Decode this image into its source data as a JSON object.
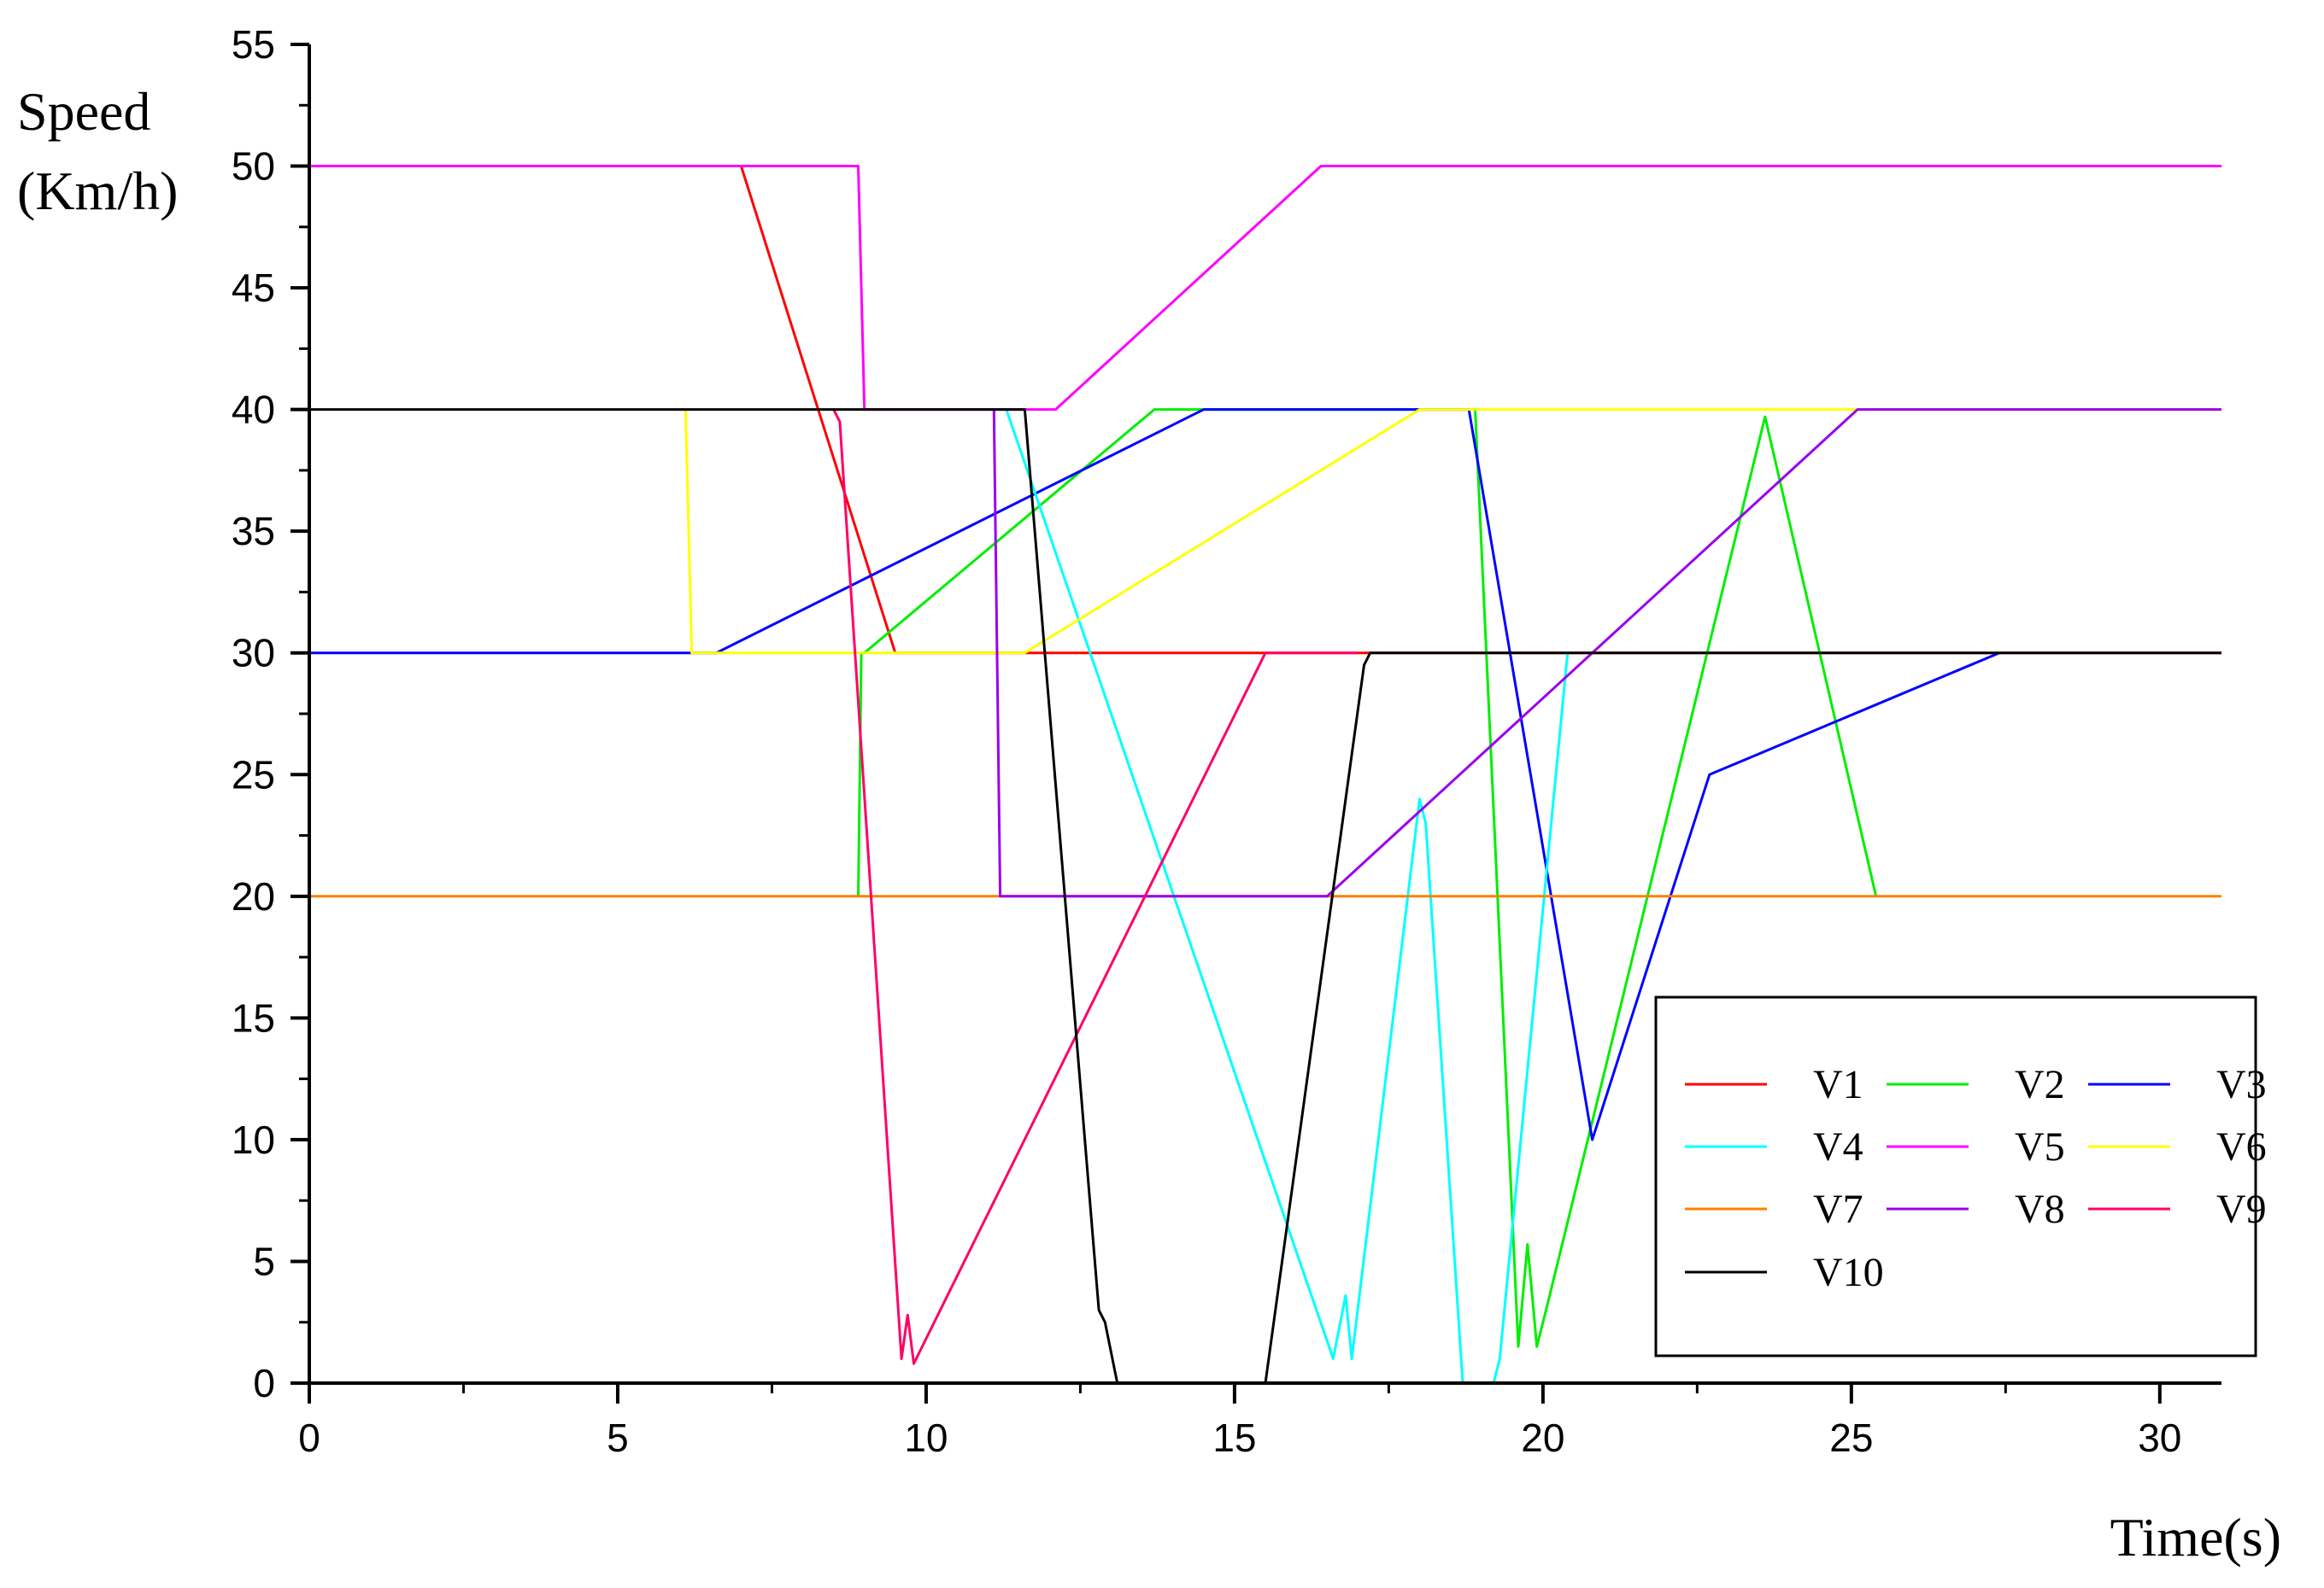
{
  "chart_data": {
    "type": "line",
    "title": "",
    "xlabel": "Time(s)",
    "ylabel_line1": "Speed",
    "ylabel_line2": "(Km/h)",
    "xlim": [
      0,
      31
    ],
    "ylim": [
      0,
      55
    ],
    "xticks": [
      0,
      5,
      10,
      15,
      20,
      25,
      30
    ],
    "yticks": [
      0,
      5,
      10,
      15,
      20,
      25,
      30,
      35,
      40,
      45,
      50,
      55
    ],
    "xtick_labels": [
      "0",
      "5",
      "10",
      "15",
      "20",
      "25",
      "30"
    ],
    "ytick_labels": [
      "0",
      "5",
      "10",
      "15",
      "20",
      "25",
      "30",
      "35",
      "40",
      "45",
      "50",
      "55"
    ],
    "grid": false,
    "legend_position": "lower-right",
    "series": [
      {
        "name": "V1",
        "color": "#ff0000",
        "x": [
          7.0,
          9.5,
          31
        ],
        "y": [
          50,
          30,
          30
        ]
      },
      {
        "name": "V2",
        "color": "#00ee00",
        "x": [
          8.9,
          8.95,
          9.0,
          13.7,
          18.9,
          19.6,
          19.75,
          19.9,
          20.05,
          23.6,
          25.4
        ],
        "y": [
          20,
          30,
          30,
          40,
          40,
          1.5,
          5.7,
          1.5,
          3,
          39.7,
          20
        ]
      },
      {
        "name": "V3",
        "color": "#0000ff",
        "x": [
          0,
          6.6,
          14.5,
          18.8,
          20.8,
          22.7,
          27.4
        ],
        "y": [
          30,
          30,
          40,
          40,
          10,
          25,
          30
        ]
      },
      {
        "name": "V4",
        "color": "#00ffff",
        "x": [
          11.3,
          16.6,
          16.8,
          16.9,
          18.0,
          18.1,
          18.7,
          19.2,
          19.3,
          20.4
        ],
        "y": [
          40,
          1,
          3.6,
          1,
          24,
          23,
          0,
          0,
          1,
          30
        ]
      },
      {
        "name": "V5",
        "color": "#ff00ff",
        "x": [
          0,
          8.9,
          9.0,
          12.1,
          16.4,
          31
        ],
        "y": [
          50,
          50,
          40,
          40,
          50,
          50
        ]
      },
      {
        "name": "V6",
        "color": "#ffff00",
        "x": [
          6.1,
          6.2,
          11.6,
          18.0,
          31
        ],
        "y": [
          40,
          30,
          30,
          40,
          40
        ]
      },
      {
        "name": "V7",
        "color": "#ff8000",
        "x": [
          0,
          31
        ],
        "y": [
          20,
          20
        ]
      },
      {
        "name": "V8",
        "color": "#9900ee",
        "x": [
          11.1,
          11.2,
          16.5,
          25.1,
          31
        ],
        "y": [
          40,
          20,
          20,
          40,
          40
        ]
      },
      {
        "name": "V9",
        "color": "#ff0066",
        "x": [
          8.5,
          8.6,
          9.6,
          9.7,
          9.8,
          15.5,
          17.0
        ],
        "y": [
          40,
          39.5,
          1,
          2.8,
          0.8,
          30,
          30
        ]
      },
      {
        "name": "V10",
        "color": "#000000",
        "x": [
          0,
          11.6,
          12.8,
          12.9,
          13.1,
          15.5,
          17.1,
          17.2,
          31
        ],
        "y": [
          40,
          40,
          3,
          2.5,
          0,
          0,
          29.5,
          30,
          30
        ]
      }
    ]
  }
}
